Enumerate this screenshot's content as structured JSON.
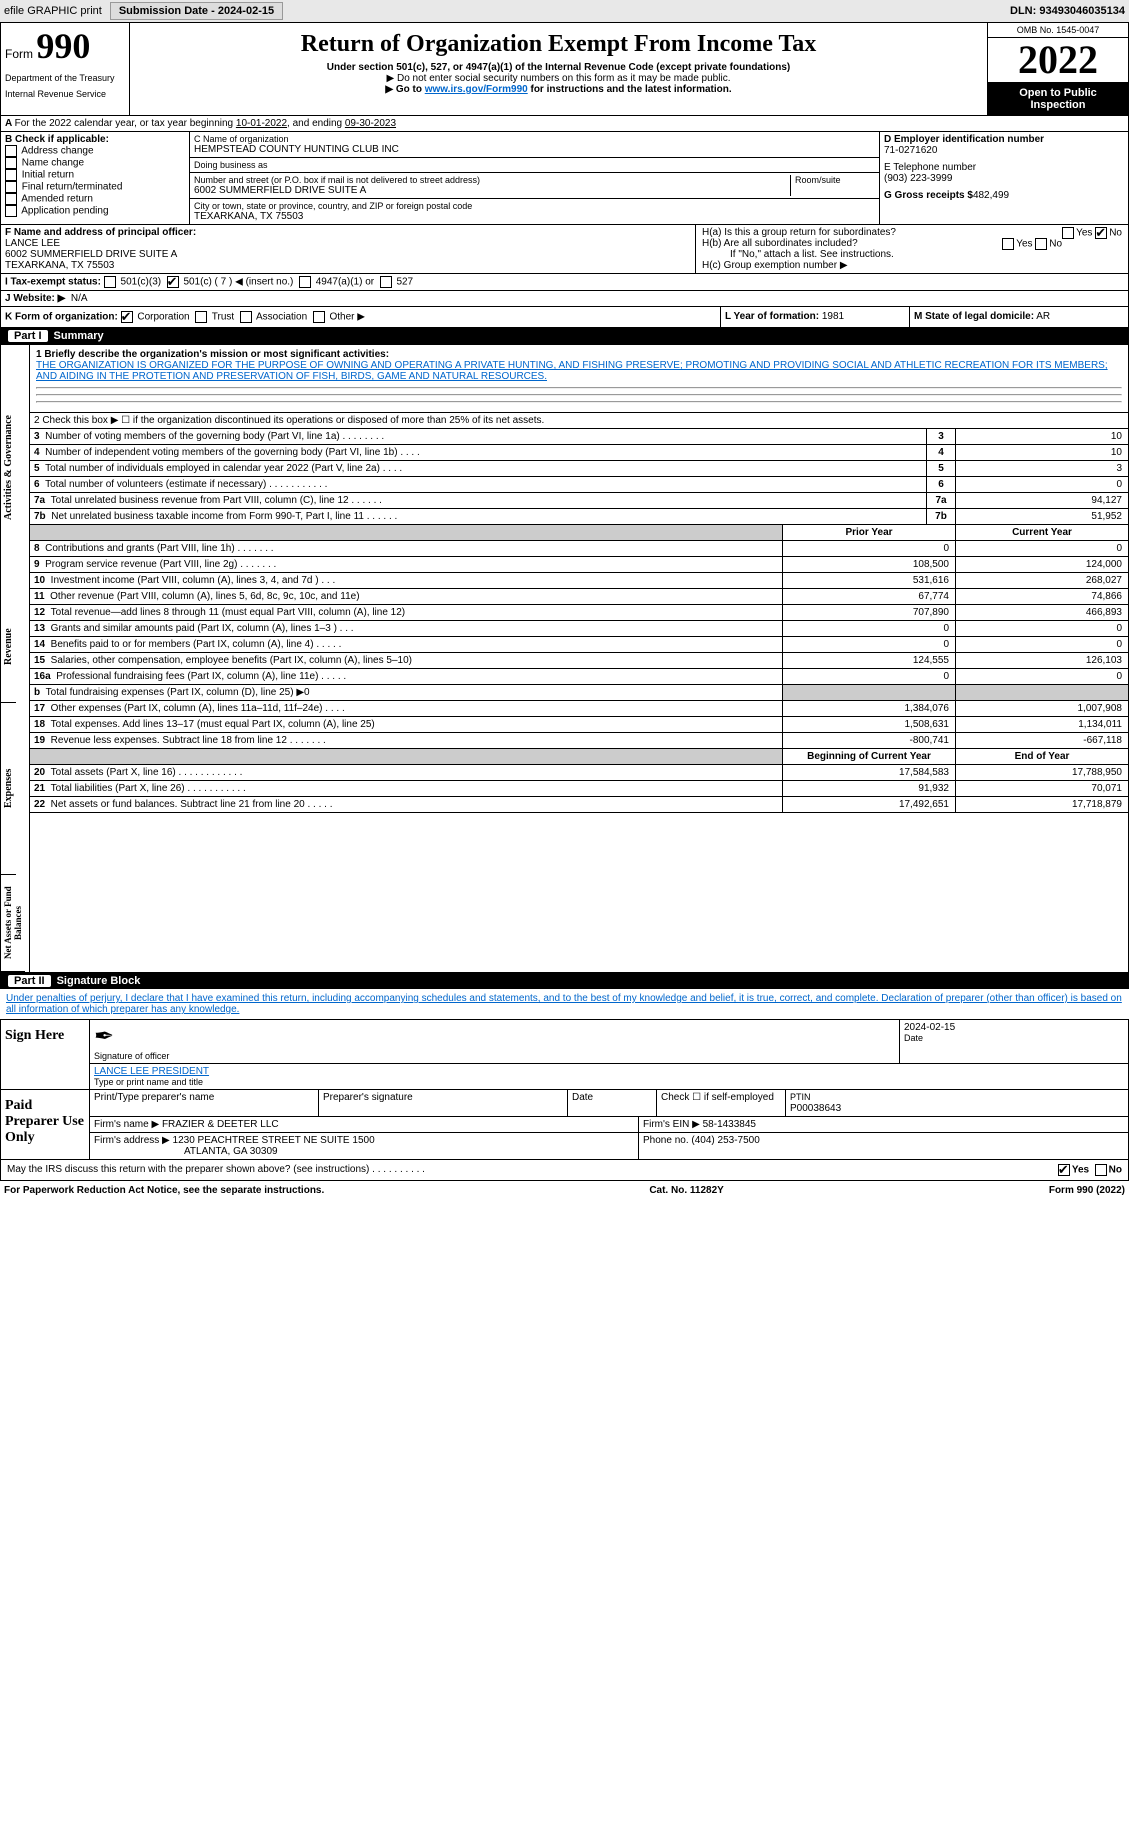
{
  "meta": {
    "efile_label": "efile GRAPHIC print",
    "submission_label": "Submission Date - 2024-02-15",
    "dln_label": "DLN: 93493046035134",
    "omb": "OMB No. 1545-0047",
    "year": "2022",
    "badge1": "Open to Public",
    "badge2": "Inspection"
  },
  "header": {
    "form_prefix": "Form",
    "form_num": "990",
    "title": "Return of Organization Exempt From Income Tax",
    "sub1": "Under section 501(c), 527, or 4947(a)(1) of the Internal Revenue Code (except private foundations)",
    "sub2": "▶ Do not enter social security numbers on this form as it may be made public.",
    "sub3_pre": "▶ Go to ",
    "sub3_link": "www.irs.gov/Form990",
    "sub3_post": " for instructions and the latest information.",
    "dept1": "Department of the Treasury",
    "dept2": "Internal Revenue Service"
  },
  "rowA": {
    "text_pre": "For the 2022 calendar year, or tax year beginning ",
    "begin": "10-01-2022",
    "mid": ", and ending ",
    "end": "09-30-2023"
  },
  "B": {
    "hdr": "B Check if applicable:",
    "items": [
      "Address change",
      "Name change",
      "Initial return",
      "Final return/terminated",
      "Amended return",
      "Application pending"
    ]
  },
  "C": {
    "name_lbl": "C Name of organization",
    "name": "HEMPSTEAD COUNTY HUNTING CLUB INC",
    "dba_lbl": "Doing business as",
    "dba": "",
    "street_lbl": "Number and street (or P.O. box if mail is not delivered to street address)",
    "room_lbl": "Room/suite",
    "street": "6002 SUMMERFIELD DRIVE SUITE A",
    "city_lbl": "City or town, state or province, country, and ZIP or foreign postal code",
    "city": "TEXARKANA, TX  75503"
  },
  "D": {
    "lbl": "D Employer identification number",
    "val": "71-0271620",
    "tel_lbl": "E Telephone number",
    "tel": "(903) 223-3999",
    "gross_lbl": "G Gross receipts $",
    "gross": "482,499"
  },
  "F": {
    "lbl": "F Name and address of principal officer:",
    "l1": "LANCE LEE",
    "l2": "6002 SUMMERFIELD DRIVE SUITE A",
    "l3": "TEXARKANA, TX  75503"
  },
  "H": {
    "a": "H(a)  Is this a group return for subordinates?",
    "b": "H(b)  Are all subordinates included?",
    "b_note": "If \"No,\" attach a list. See instructions.",
    "c": "H(c)  Group exemption number ▶",
    "yes": "Yes",
    "no": "No"
  },
  "I": {
    "lbl": "I  Tax-exempt status:",
    "o1": "501(c)(3)",
    "o2": "501(c) ( 7 ) ◀ (insert no.)",
    "o3": "4947(a)(1) or",
    "o4": "527"
  },
  "J": {
    "lbl": "J  Website: ▶",
    "val": "N/A"
  },
  "K": {
    "lbl": "K Form of organization:",
    "o1": "Corporation",
    "o2": "Trust",
    "o3": "Association",
    "o4": "Other ▶"
  },
  "L": {
    "lbl": "L Year of formation:",
    "val": "1981"
  },
  "M": {
    "lbl": "M State of legal domicile:",
    "val": "AR"
  },
  "partI": {
    "hdr": "Part I",
    "title": "Summary"
  },
  "mission": {
    "lbl": "1  Briefly describe the organization's mission or most significant activities:",
    "text": "THE ORGANIZATION IS ORGANIZED FOR THE PURPOSE OF OWNING AND OPERATING A PRIVATE HUNTING, AND FISHING PRESERVE; PROMOTING AND PROVIDING SOCIAL AND ATHLETIC RECREATION FOR ITS MEMBERS; AND AIDING IN THE PROTETION AND PRESERVATION OF FISH, BIRDS, GAME AND NATURAL RESOURCES."
  },
  "lines": {
    "l2": "2   Check this box ▶ ☐ if the organization discontinued its operations or disposed of more than 25% of its net assets.",
    "rows1": [
      {
        "n": "3",
        "t": "Number of voting members of the governing body (Part VI, line 1a)   .   .   .   .   .   .   .   .",
        "v": "10"
      },
      {
        "n": "4",
        "t": "Number of independent voting members of the governing body (Part VI, line 1b)   .   .   .   .",
        "v": "10"
      },
      {
        "n": "5",
        "t": "Total number of individuals employed in calendar year 2022 (Part V, line 2a)   .   .   .   .",
        "v": "3"
      },
      {
        "n": "6",
        "t": "Total number of volunteers (estimate if necessary)    .   .   .   .   .   .   .   .   .   .   .",
        "v": "0"
      },
      {
        "n": "7a",
        "t": "Total unrelated business revenue from Part VIII, column (C), line 12   .   .   .   .   .   .",
        "v": "94,127"
      },
      {
        "n": "7b",
        "t": "Net unrelated business taxable income from Form 990-T, Part I, line 11   .   .   .   .   .   .",
        "v": "51,952"
      }
    ],
    "py": "Prior Year",
    "cy": "Current Year",
    "rev": [
      {
        "n": "8",
        "t": "Contributions and grants (Part VIII, line 1h)   .   .   .   .   .   .   .",
        "p": "0",
        "c": "0"
      },
      {
        "n": "9",
        "t": "Program service revenue (Part VIII, line 2g)   .   .   .   .   .   .   .",
        "p": "108,500",
        "c": "124,000"
      },
      {
        "n": "10",
        "t": "Investment income (Part VIII, column (A), lines 3, 4, and 7d )   .   .   .",
        "p": "531,616",
        "c": "268,027"
      },
      {
        "n": "11",
        "t": "Other revenue (Part VIII, column (A), lines 5, 6d, 8c, 9c, 10c, and 11e)",
        "p": "67,774",
        "c": "74,866"
      },
      {
        "n": "12",
        "t": "Total revenue—add lines 8 through 11 (must equal Part VIII, column (A), line 12)",
        "p": "707,890",
        "c": "466,893"
      }
    ],
    "exp": [
      {
        "n": "13",
        "t": "Grants and similar amounts paid (Part IX, column (A), lines 1–3 )   .   .   .",
        "p": "0",
        "c": "0"
      },
      {
        "n": "14",
        "t": "Benefits paid to or for members (Part IX, column (A), line 4)   .   .   .   .   .",
        "p": "0",
        "c": "0"
      },
      {
        "n": "15",
        "t": "Salaries, other compensation, employee benefits (Part IX, column (A), lines 5–10)",
        "p": "124,555",
        "c": "126,103"
      },
      {
        "n": "16a",
        "t": "Professional fundraising fees (Part IX, column (A), line 11e)   .   .   .   .   .",
        "p": "0",
        "c": "0"
      },
      {
        "n": "b",
        "t": "Total fundraising expenses (Part IX, column (D), line 25) ▶0",
        "p": "",
        "c": "",
        "gray": true
      },
      {
        "n": "17",
        "t": "Other expenses (Part IX, column (A), lines 11a–11d, 11f–24e)   .   .   .   .",
        "p": "1,384,076",
        "c": "1,007,908"
      },
      {
        "n": "18",
        "t": "Total expenses. Add lines 13–17 (must equal Part IX, column (A), line 25)",
        "p": "1,508,631",
        "c": "1,134,011"
      },
      {
        "n": "19",
        "t": "Revenue less expenses. Subtract line 18 from line 12   .   .   .   .   .   .   .",
        "p": "-800,741",
        "c": "-667,118"
      }
    ],
    "by": "Beginning of Current Year",
    "ey": "End of Year",
    "net": [
      {
        "n": "20",
        "t": "Total assets (Part X, line 16)   .   .   .   .   .   .   .   .   .   .   .   .",
        "p": "17,584,583",
        "c": "17,788,950"
      },
      {
        "n": "21",
        "t": "Total liabilities (Part X, line 26)   .   .   .   .   .   .   .   .   .   .   .",
        "p": "91,932",
        "c": "70,071"
      },
      {
        "n": "22",
        "t": "Net assets or fund balances. Subtract line 21 from line 20   .   .   .   .   .",
        "p": "17,492,651",
        "c": "17,718,879"
      }
    ]
  },
  "vtabs": {
    "a": "Activities & Governance",
    "r": "Revenue",
    "e": "Expenses",
    "n": "Net Assets or Fund Balances"
  },
  "partII": {
    "hdr": "Part II",
    "title": "Signature Block"
  },
  "penalties": "Under penalties of perjury, I declare that I have examined this return, including accompanying schedules and statements, and to the best of my knowledge and belief, it is true, correct, and complete. Declaration of preparer (other than officer) is based on all information of which preparer has any knowledge.",
  "sign": {
    "lbl": "Sign Here",
    "sig_lbl": "Signature of officer",
    "date_lbl": "Date",
    "date": "2024-02-15",
    "name": "LANCE LEE  PRESIDENT",
    "name_lbl": "Type or print name and title"
  },
  "paid": {
    "lbl": "Paid Preparer Use Only",
    "c1": "Print/Type preparer's name",
    "c2": "Preparer's signature",
    "c3": "Date",
    "c4": "Check ☐ if self-employed",
    "c5": "PTIN",
    "ptin": "P00038643",
    "firm_lbl": "Firm's name    ▶",
    "firm": "FRAZIER & DEETER LLC",
    "ein_lbl": "Firm's EIN ▶",
    "ein": "58-1433845",
    "addr_lbl": "Firm's address ▶",
    "addr1": "1230 PEACHTREE STREET NE SUITE 1500",
    "addr2": "ATLANTA, GA  30309",
    "phone_lbl": "Phone no.",
    "phone": "(404) 253-7500"
  },
  "discuss": "May the IRS discuss this return with the preparer shown above? (see instructions)   .   .   .   .   .   .   .   .   .   .",
  "foot": {
    "l": "For Paperwork Reduction Act Notice, see the separate instructions.",
    "m": "Cat. No. 11282Y",
    "r": "Form 990 (2022)"
  }
}
